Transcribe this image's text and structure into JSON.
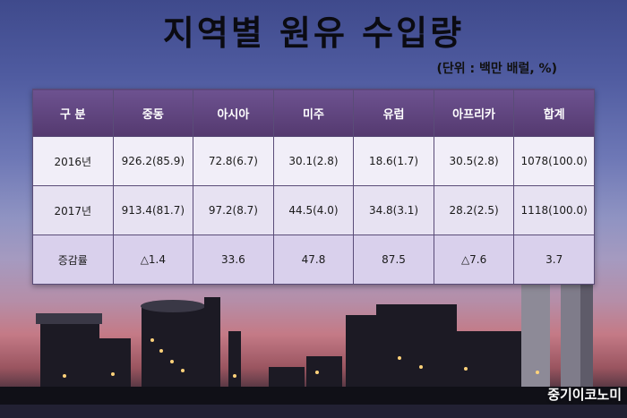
{
  "title": "지역별 원유 수입량",
  "unit": "(단위 : 백만 배럴, %)",
  "table": {
    "headers": [
      "구 분",
      "중동",
      "아시아",
      "미주",
      "유럽",
      "아프리카",
      "합계"
    ],
    "rows": [
      [
        "2016년",
        "926.2(85.9)",
        "72.8(6.7)",
        "30.1(2.8)",
        "18.6(1.7)",
        "30.5(2.8)",
        "1078(100.0)"
      ],
      [
        "2017년",
        "913.4(81.7)",
        "97.2(8.7)",
        "44.5(4.0)",
        "34.8(3.1)",
        "28.2(2.5)",
        "1118(100.0)"
      ],
      [
        "증감률",
        "△1.4",
        "33.6",
        "47.8",
        "87.5",
        "△7.6",
        "3.7"
      ]
    ]
  },
  "credit": "중기이코노미",
  "colors": {
    "header_bg": "#5e4380",
    "sky_top": "#3f4a8c",
    "sky_bottom": "#c47a86"
  }
}
